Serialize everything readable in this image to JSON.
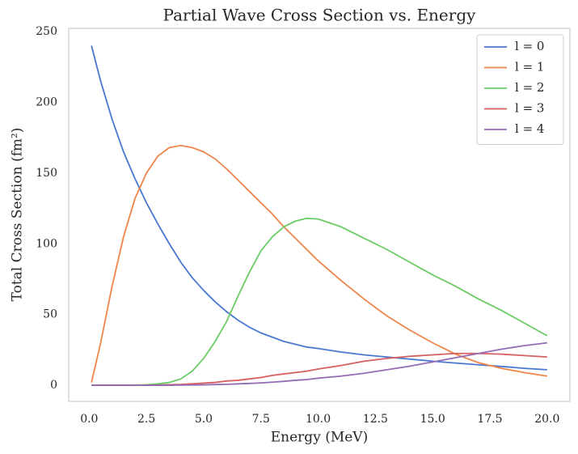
{
  "chart_data": {
    "type": "line",
    "title": "Partial Wave Cross Section vs. Energy",
    "xlabel": "Energy (MeV)",
    "ylabel": "Total Cross Section (fm²)",
    "x": [
      0.1,
      0.5,
      1,
      1.5,
      2,
      2.5,
      3,
      3.5,
      4,
      4.5,
      5,
      5.5,
      6,
      6.5,
      7,
      7.5,
      8,
      8.5,
      9,
      9.5,
      10,
      11,
      12,
      13,
      14,
      15,
      16,
      17,
      18,
      19,
      20
    ],
    "series": [
      {
        "name": "l = 0",
        "color": "#4878d0",
        "values": [
          240,
          215,
          188,
          165,
          146,
          129,
          114,
          100,
          87,
          76,
          67,
          59,
          52,
          46,
          41,
          37,
          34,
          31,
          29,
          27,
          26,
          23.5,
          21.5,
          20,
          18.5,
          17,
          15.7,
          14.5,
          13.3,
          12,
          11
        ]
      },
      {
        "name": "l = 1",
        "color": "#ee854a",
        "values": [
          2,
          30,
          70,
          105,
          132,
          150,
          162,
          168,
          169.5,
          168,
          165,
          160,
          153,
          145,
          137,
          129,
          121,
          112,
          104,
          96,
          88,
          74,
          61,
          49,
          39,
          30,
          22,
          16,
          12,
          9,
          6.5
        ]
      },
      {
        "name": "l = 2",
        "color": "#6acc64",
        "values": [
          0,
          0,
          0,
          0,
          0.2,
          0.4,
          1,
          2,
          4.5,
          10,
          19,
          31,
          45,
          63,
          80,
          95,
          105,
          112,
          116,
          118,
          117.5,
          112,
          104,
          96,
          87,
          78,
          70,
          61,
          53,
          44,
          35
        ]
      },
      {
        "name": "l = 3",
        "color": "#d65f5f",
        "values": [
          0,
          0,
          0,
          0,
          0,
          0.1,
          0.2,
          0.4,
          0.6,
          1,
          1.5,
          2,
          3,
          3.5,
          4.5,
          5.5,
          7,
          8,
          9,
          10,
          11.5,
          14,
          17,
          19,
          20.5,
          21.5,
          22.5,
          22.5,
          22,
          21,
          20
        ]
      },
      {
        "name": "l = 4",
        "color": "#956cb4",
        "values": [
          0,
          0,
          0,
          0,
          0,
          0,
          0,
          0,
          0.1,
          0.2,
          0.3,
          0.5,
          0.7,
          1,
          1.3,
          1.7,
          2.2,
          2.8,
          3.5,
          4,
          5,
          6.5,
          8.5,
          11,
          13.5,
          16.5,
          19.5,
          22.5,
          25.5,
          28,
          30
        ]
      }
    ],
    "xlim": [
      -0.895,
      20.995
    ],
    "xticks": [
      {
        "value": 0,
        "label": "0.0"
      },
      2.5,
      {
        "value": 5,
        "label": "5.0"
      },
      7.5,
      {
        "value": 10,
        "label": "10.0"
      },
      12.5,
      {
        "value": 15,
        "label": "15.0"
      },
      17.5,
      {
        "value": 20,
        "label": "20.0"
      }
    ],
    "ylim": [
      -11.4,
      252.3
    ],
    "yticks": [
      0,
      50,
      100,
      150,
      200,
      250
    ],
    "grid": false,
    "legend": "upper right"
  }
}
